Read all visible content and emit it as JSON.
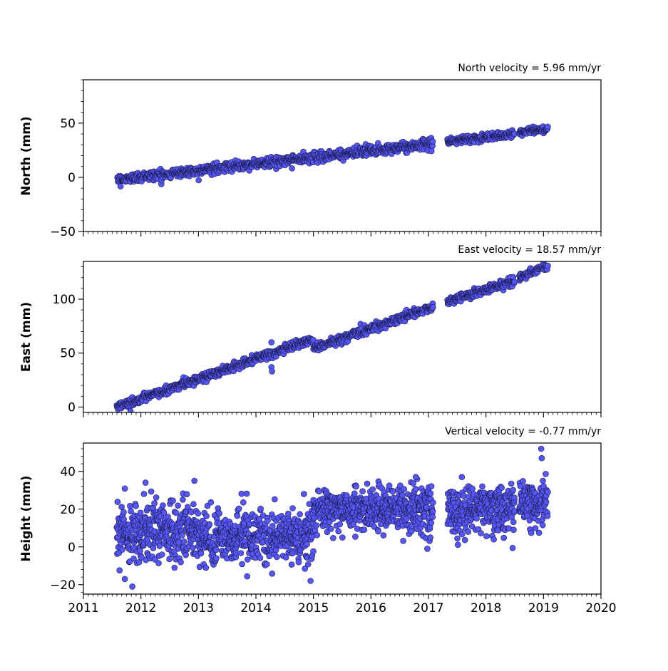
{
  "chart_data": [
    {
      "type": "scatter",
      "title": "North velocity = 5.96 mm/yr",
      "ylabel": "North (mm)",
      "xlabel": "",
      "xlim": [
        2011,
        2020
      ],
      "ylim": [
        -50,
        90
      ],
      "yticks": [
        -50,
        0,
        50
      ],
      "xticks": [
        2011,
        2012,
        2013,
        2014,
        2015,
        2016,
        2017,
        2018,
        2019,
        2020
      ],
      "xtick_labels_shown": false,
      "grid": false,
      "segments": [
        {
          "x_start": 2011.58,
          "x_end": 2017.08,
          "y_start": -2,
          "y_end": 31,
          "noise": 2.2,
          "step": 0.0055
        },
        {
          "x_start": 2017.33,
          "x_end": 2018.5,
          "y_start": 33,
          "y_end": 40,
          "noise": 1.8,
          "step": 0.0055
        },
        {
          "x_start": 2018.58,
          "x_end": 2019.08,
          "y_start": 42,
          "y_end": 45,
          "noise": 1.5,
          "step": 0.0055
        }
      ]
    },
    {
      "type": "scatter",
      "title": "East velocity = 18.57 mm/yr",
      "ylabel": "East (mm)",
      "xlabel": "",
      "xlim": [
        2011,
        2020
      ],
      "ylim": [
        -5,
        135
      ],
      "yticks": [
        0,
        50,
        100
      ],
      "xticks": [
        2011,
        2012,
        2013,
        2014,
        2015,
        2016,
        2017,
        2018,
        2019,
        2020
      ],
      "xtick_labels_shown": false,
      "grid": false,
      "segments": [
        {
          "x_start": 2011.58,
          "x_end": 2015.0,
          "y_start": 0,
          "y_end": 63,
          "noise": 2.0,
          "step": 0.0055
        },
        {
          "x_start": 2015.0,
          "x_end": 2017.08,
          "y_start": 54,
          "y_end": 93,
          "noise": 2.0,
          "step": 0.0055
        },
        {
          "x_start": 2017.33,
          "x_end": 2018.5,
          "y_start": 98,
          "y_end": 117,
          "noise": 1.8,
          "step": 0.0055
        },
        {
          "x_start": 2018.58,
          "x_end": 2019.08,
          "y_start": 120,
          "y_end": 131,
          "noise": 1.8,
          "step": 0.0055
        }
      ],
      "outliers": [
        {
          "x": 2014.27,
          "y": 60
        },
        {
          "x": 2014.27,
          "y": 37
        },
        {
          "x": 2014.28,
          "y": 33
        },
        {
          "x": 2011.82,
          "y": -4
        }
      ]
    },
    {
      "type": "scatter",
      "title": "Vertical velocity = -0.77 mm/yr",
      "ylabel": "Height (mm)",
      "xlabel": "",
      "xlim": [
        2011,
        2020
      ],
      "ylim": [
        -25,
        55
      ],
      "yticks": [
        -20,
        0,
        20,
        40
      ],
      "xticks": [
        2011,
        2012,
        2013,
        2014,
        2015,
        2016,
        2017,
        2018,
        2019,
        2020
      ],
      "xtick_labels": [
        "2011",
        "2012",
        "2013",
        "2014",
        "2015",
        "2016",
        "2017",
        "2018",
        "2019",
        "2020"
      ],
      "grid": false,
      "segments": [
        {
          "x_start": 2011.58,
          "x_end": 2013.0,
          "y_start": 8,
          "y_end": 9,
          "noise": 8.0,
          "step": 0.0035
        },
        {
          "x_start": 2013.0,
          "x_end": 2015.0,
          "y_start": 5,
          "y_end": 6,
          "noise": 7.0,
          "step": 0.0035
        },
        {
          "x_start": 2015.0,
          "x_end": 2017.08,
          "y_start": 20,
          "y_end": 20,
          "noise": 6.0,
          "step": 0.0035
        },
        {
          "x_start": 2017.33,
          "x_end": 2018.5,
          "y_start": 19,
          "y_end": 20,
          "noise": 6.0,
          "step": 0.0035
        },
        {
          "x_start": 2018.58,
          "x_end": 2019.08,
          "y_start": 23,
          "y_end": 23,
          "noise": 6.0,
          "step": 0.0035
        }
      ],
      "outliers": [
        {
          "x": 2011.85,
          "y": -21
        },
        {
          "x": 2011.72,
          "y": -17
        },
        {
          "x": 2014.95,
          "y": -18
        },
        {
          "x": 2018.96,
          "y": 52
        },
        {
          "x": 2018.97,
          "y": 47
        },
        {
          "x": 2012.93,
          "y": 35
        },
        {
          "x": 2016.78,
          "y": 37
        },
        {
          "x": 2017.58,
          "y": 37
        },
        {
          "x": 2012.08,
          "y": 34
        },
        {
          "x": 2016.98,
          "y": -1
        }
      ]
    }
  ],
  "marker_style": {
    "fill": "#5656f5",
    "edge": "#1a1a4a"
  }
}
